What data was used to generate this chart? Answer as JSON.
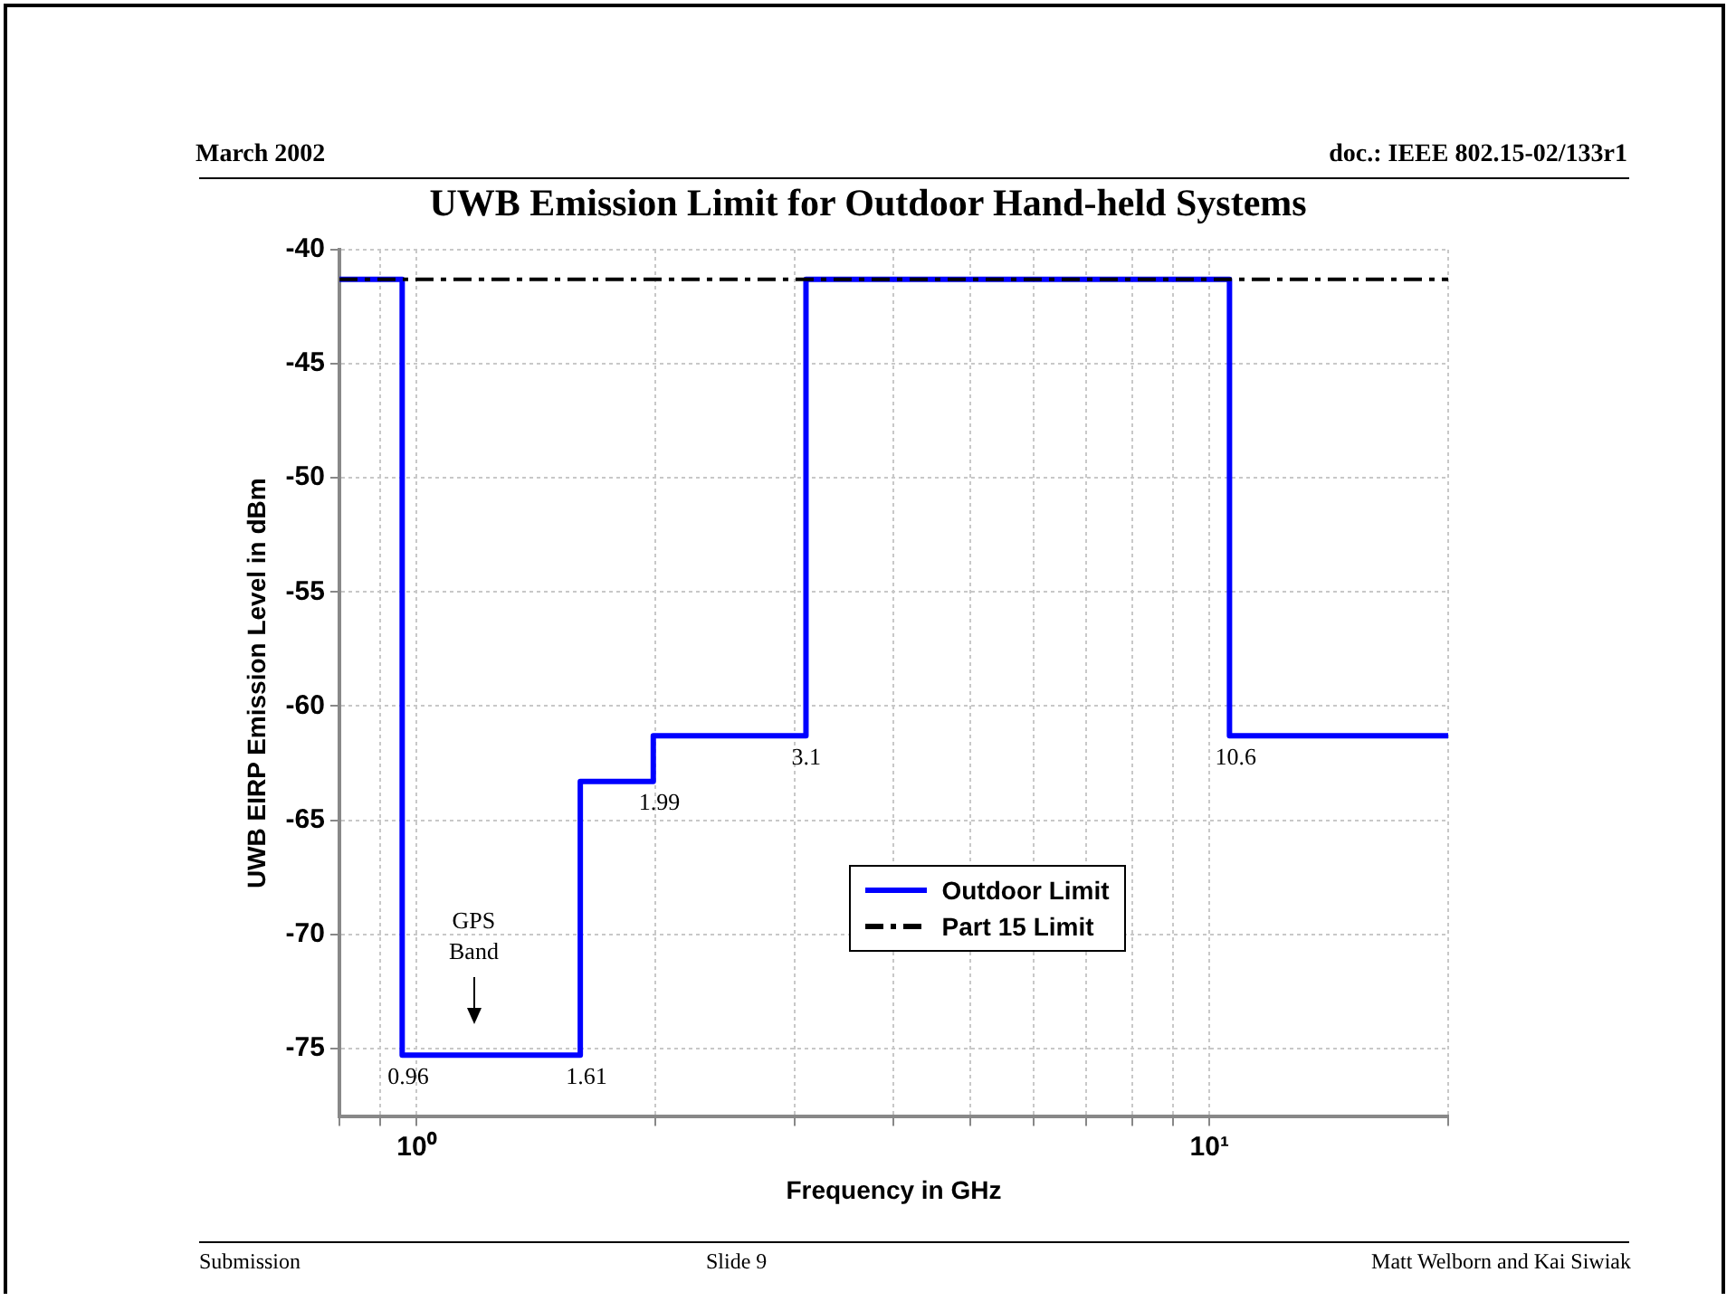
{
  "chart_data": {
    "type": "step",
    "title": "UWB Emission Limit for Outdoor Hand-held Systems",
    "xlabel": "Frequency in GHz",
    "ylabel": "UWB EIRP Emission Level in dBm",
    "log": "x",
    "grid": true,
    "legend": "right",
    "xlim": [
      0.8,
      20
    ],
    "xticks": [
      {
        "value": 0.8,
        "label": null
      },
      {
        "value": 0.9,
        "label": null
      },
      {
        "value": 1,
        "label": "10⁰"
      },
      {
        "value": 2,
        "label": null
      },
      {
        "value": 3,
        "label": null
      },
      {
        "value": 4,
        "label": null
      },
      {
        "value": 5,
        "label": null
      },
      {
        "value": 6,
        "label": null
      },
      {
        "value": 7,
        "label": null
      },
      {
        "value": 8,
        "label": null
      },
      {
        "value": 9,
        "label": null
      },
      {
        "value": 10,
        "label": "10¹"
      },
      {
        "value": 20,
        "label": null
      }
    ],
    "ylim": [
      -78,
      -40
    ],
    "yticks": [
      -40,
      -45,
      -50,
      -55,
      -60,
      -65,
      -70,
      -75
    ],
    "series": [
      {
        "name": "Outdoor Limit",
        "color": "#0000ff",
        "line_style": "solid",
        "x": [
          0.8,
          0.96,
          1.61,
          1.99,
          3.1,
          10.6,
          20
        ],
        "values": [
          -41.3,
          -75.3,
          -63.3,
          -61.3,
          -41.3,
          -61.3,
          -61.3
        ]
      },
      {
        "name": "Part 15 Limit",
        "type": "line",
        "color": "#000000",
        "line_style": "dashed",
        "x": [
          0.8,
          20
        ],
        "values": [
          -41.3,
          -41.3
        ]
      }
    ],
    "annotations": [
      "March 2002",
      "doc.: IEEE 802.15-02/133r1",
      "Submission",
      "Slide 9",
      "Matt Welborn and Kai Siwiak",
      {
        "text": "0.96",
        "x": 0.96,
        "y": -75.3
      },
      {
        "text": "1.61",
        "x": 1.61,
        "y": -75.3
      },
      {
        "text": "1.99",
        "x": 1.99,
        "y": -63.3
      },
      {
        "text": "3.1",
        "x": 3.1,
        "y": -61.3
      },
      {
        "text": "10.6",
        "x": 10.6,
        "y": -61.3
      },
      "GPS\nBand"
    ]
  }
}
